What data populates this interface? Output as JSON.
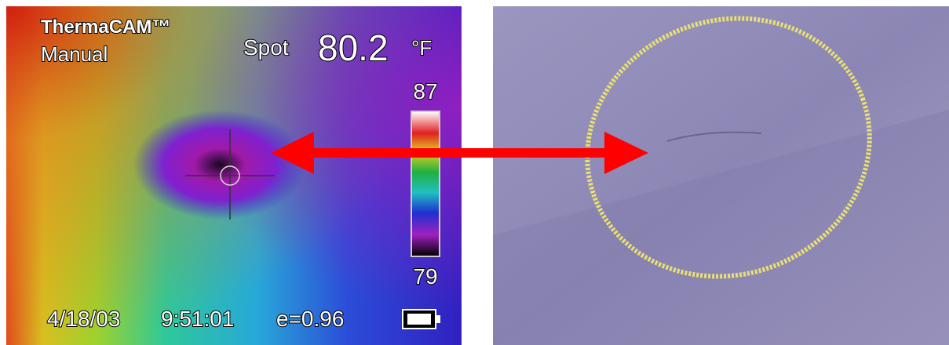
{
  "thermal_view": {
    "brand": "ThermaCAM™",
    "mode": "Manual",
    "spot_label": "Spot",
    "spot_value": "80.2",
    "unit": "°F",
    "scale_max": "87",
    "scale_min": "79",
    "date": "4/18/03",
    "time": "9:51:01",
    "emissivity": "e=0.96"
  }
}
